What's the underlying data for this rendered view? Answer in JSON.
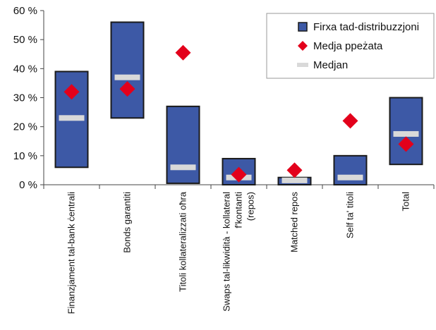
{
  "chart_data": {
    "type": "range-bar",
    "ylim": [
      0,
      60
    ],
    "yticks": [
      "0 %",
      "10 %",
      "20 %",
      "30 %",
      "40 %",
      "50 %",
      "60 %"
    ],
    "legend": {
      "position": "top-right",
      "items": [
        {
          "label": "Firxa tad-distribuzzjoni",
          "kind": "range"
        },
        {
          "label": "Medja ppeżata",
          "kind": "weighted-mean"
        },
        {
          "label": "Medjan",
          "kind": "median"
        }
      ]
    },
    "colors": {
      "range_fill": "#3D59A6",
      "range_border": "#1a1a1a",
      "weighted_mean": "#E3001B",
      "median": "#D9D9D9",
      "axis": "#444444"
    },
    "categories": [
      {
        "label_lines": [
          "Finanzjament tal-bank ċentrali"
        ],
        "low": 6,
        "high": 39,
        "median": 23,
        "weighted_mean": 32
      },
      {
        "label_lines": [
          "Bonds garantiti"
        ],
        "low": 23,
        "high": 56,
        "median": 37,
        "weighted_mean": 33
      },
      {
        "label_lines": [
          "Titoli kollateralizzati oħra"
        ],
        "low": 0.5,
        "high": 27,
        "median": 6,
        "weighted_mean": 45.5
      },
      {
        "label_lines": [
          "Swaps tal-likwidità - kollateral",
          "f'kontanti",
          "(repos)"
        ],
        "low": 0,
        "high": 9,
        "median": 2.5,
        "weighted_mean": 3.5
      },
      {
        "label_lines": [
          "Matched repos"
        ],
        "low": 0,
        "high": 2.5,
        "median": 1.5,
        "weighted_mean": 5
      },
      {
        "label_lines": [
          "Self ta' titoli"
        ],
        "low": 0,
        "high": 10,
        "median": 2.5,
        "weighted_mean": 22
      },
      {
        "label_lines": [
          "Total"
        ],
        "low": 7,
        "high": 30,
        "median": 17.5,
        "weighted_mean": 14
      }
    ]
  }
}
